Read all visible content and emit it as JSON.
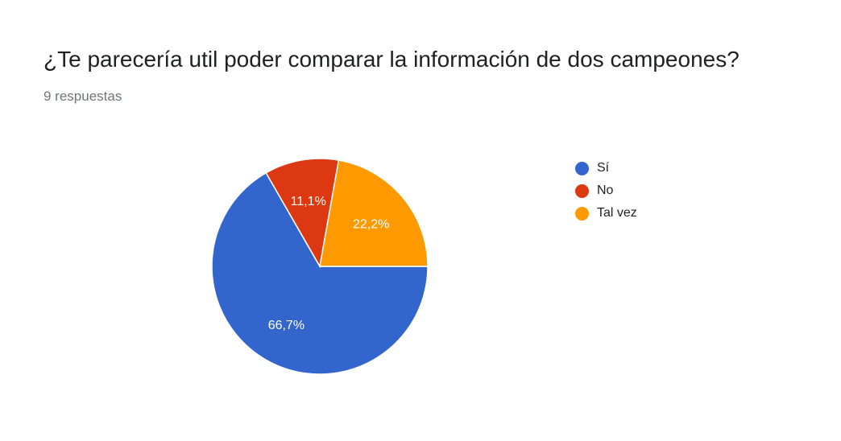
{
  "question": {
    "title": "¿Te parecería util poder comparar la información de dos campeones?",
    "responses_label": "9 respuestas"
  },
  "chart_data": {
    "type": "pie",
    "title": "¿Te parecería util poder comparar la información de dos campeones?",
    "categories": [
      "Sí",
      "No",
      "Tal vez"
    ],
    "values": [
      66.7,
      11.1,
      22.2
    ],
    "labels": [
      "66,7%",
      "11,1%",
      "22,2%"
    ],
    "colors": [
      "#3366cc",
      "#dc3912",
      "#ff9900"
    ],
    "legend_position": "right"
  }
}
